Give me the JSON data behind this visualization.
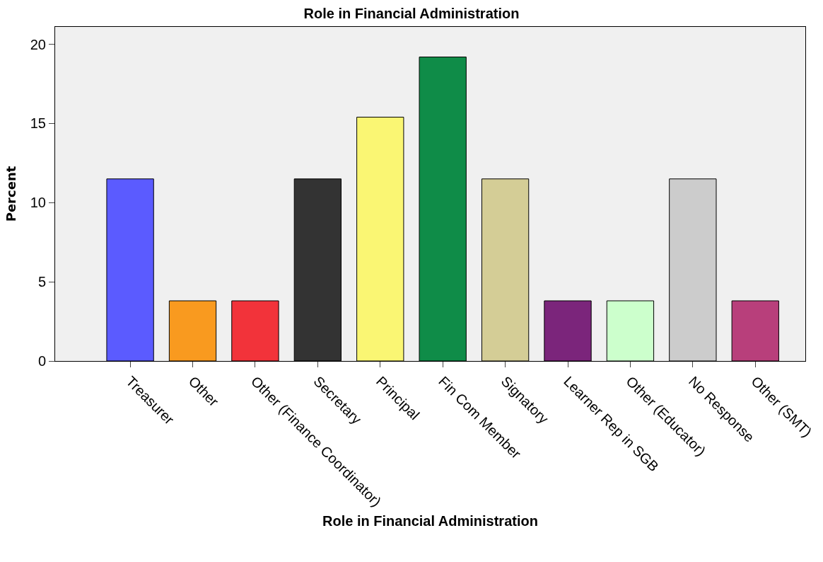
{
  "chart_data": {
    "type": "bar",
    "title": "Role in Financial Administration",
    "xlabel": "Role in Financial Administration",
    "ylabel": "Percent",
    "categories": [
      "Treasurer",
      "Other",
      "Other (Finance Coordinator)",
      "Secretary",
      "Principal",
      "Fin Com Member",
      "Signatory",
      "Learner Rep in SGB",
      "Other (Educator)",
      "No Response",
      "Other (SMT)"
    ],
    "values": [
      11.5,
      3.8,
      3.8,
      11.5,
      15.4,
      19.2,
      11.5,
      3.8,
      3.8,
      11.5,
      3.8
    ],
    "colors": [
      "#5b5bff",
      "#f99a1f",
      "#f2333a",
      "#333333",
      "#faf673",
      "#0f8c48",
      "#d4cd96",
      "#7b257b",
      "#ccffcc",
      "#cccccc",
      "#b83f7b"
    ],
    "ylim": [
      0,
      21.1
    ],
    "yticks": [
      0,
      5,
      10,
      15,
      20
    ],
    "grid": false
  }
}
